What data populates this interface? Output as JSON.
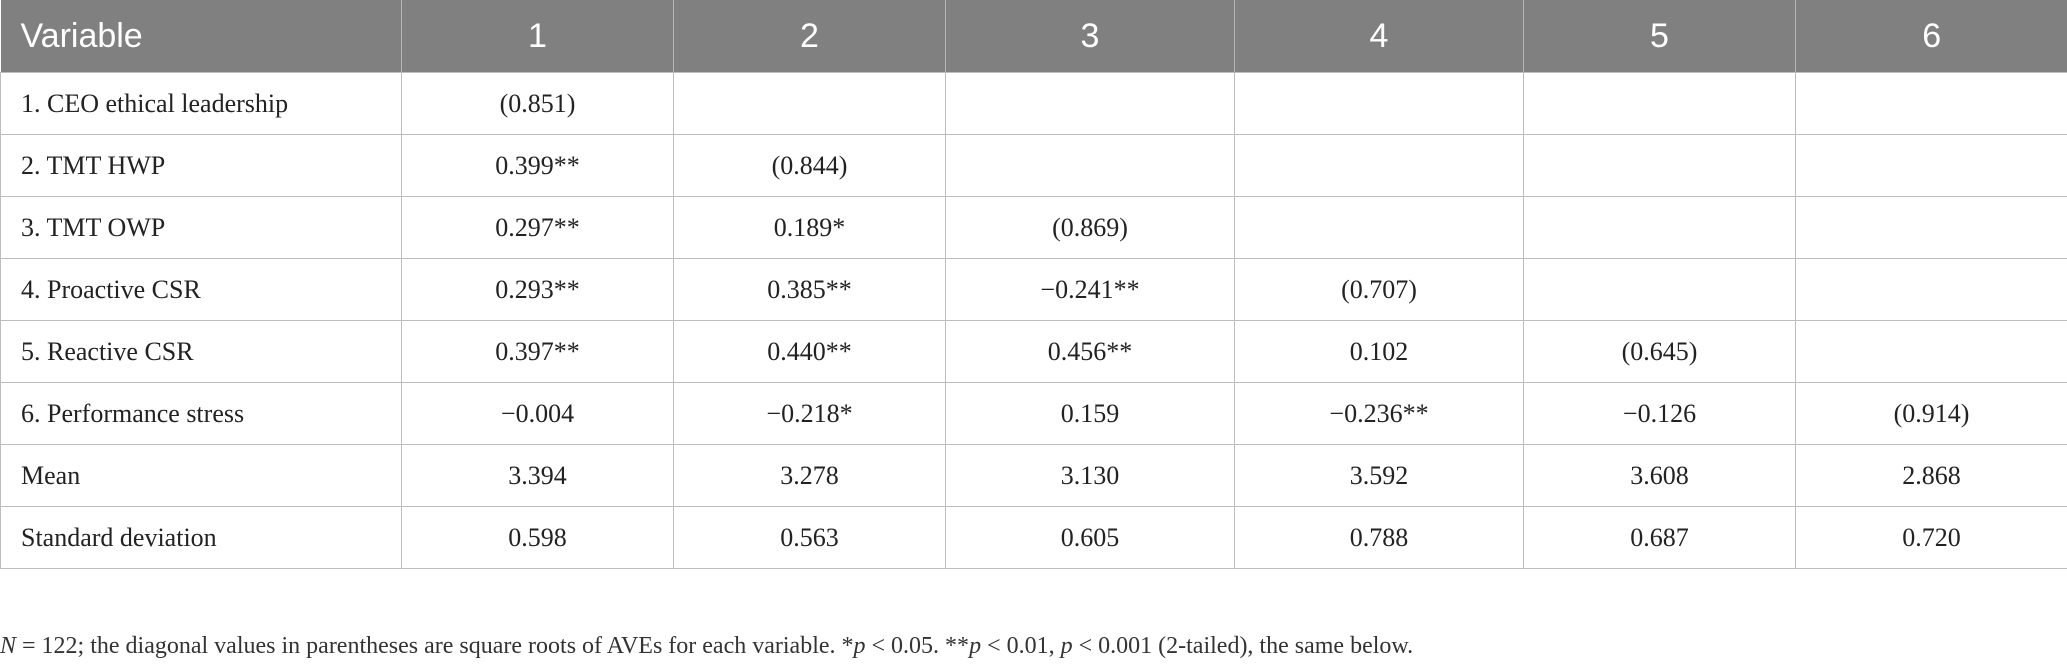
{
  "table": {
    "headers": [
      "Variable",
      "1",
      "2",
      "3",
      "4",
      "5",
      "6"
    ],
    "rows": [
      [
        "1. CEO ethical leadership",
        "(0.851)",
        "",
        "",
        "",
        "",
        ""
      ],
      [
        "2. TMT HWP",
        "0.399**",
        "(0.844)",
        "",
        "",
        "",
        ""
      ],
      [
        "3. TMT OWP",
        "0.297**",
        "0.189*",
        "(0.869)",
        "",
        "",
        ""
      ],
      [
        "4. Proactive CSR",
        "0.293**",
        "0.385**",
        "−0.241**",
        "(0.707)",
        "",
        ""
      ],
      [
        "5. Reactive CSR",
        "0.397**",
        "0.440**",
        "0.456**",
        "0.102",
        "(0.645)",
        ""
      ],
      [
        "6. Performance stress",
        "−0.004",
        "−0.218*",
        "0.159",
        "−0.236**",
        "−0.126",
        "(0.914)"
      ],
      [
        "Mean",
        "3.394",
        "3.278",
        "3.130",
        "3.592",
        "3.608",
        "2.868"
      ],
      [
        "Standard deviation",
        "0.598",
        "0.563",
        "0.605",
        "0.788",
        "0.687",
        "0.720"
      ]
    ]
  },
  "note": {
    "n_italic": "N",
    "n_text": " = 122; the diagonal values in parentheses are square roots of AVEs for each variable. *",
    "p1": "p",
    "t1": " < 0.05. **",
    "p2": "p",
    "t2": " < 0.01, ",
    "p3": "p",
    "t3": " < 0.001 (2-tailed), the same below."
  }
}
